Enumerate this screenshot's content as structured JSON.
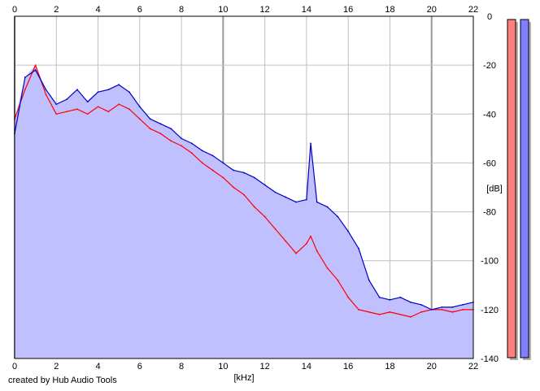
{
  "footer": {
    "credit": "created by Hub Audio Tools"
  },
  "colors": {
    "background": "#ffffff",
    "grid": "#c0c0c0",
    "major_grid": "#9a9a9a",
    "fill": "#c0c0ff",
    "left_channel": "#ff0000",
    "right_channel": "#0000c8",
    "meter_left": "#ff7f7f",
    "meter_right": "#7f7fff"
  },
  "chart_data": {
    "type": "line",
    "title": "",
    "xlabel": "[kHz]",
    "ylabel": "[dB]",
    "xlim": [
      0,
      22
    ],
    "ylim": [
      -140,
      0
    ],
    "x_ticks": [
      "0",
      "2",
      "4",
      "6",
      "8",
      "10",
      "12",
      "14",
      "16",
      "18",
      "20",
      "22"
    ],
    "y_ticks": [
      "0",
      "-20",
      "-40",
      "-60",
      "-80",
      "-100",
      "-120",
      "-140"
    ],
    "grid": true,
    "x": [
      0,
      0.5,
      1,
      1.5,
      2,
      2.5,
      3,
      3.5,
      4,
      4.5,
      5,
      5.5,
      6,
      6.5,
      7,
      7.5,
      8,
      8.5,
      9,
      9.5,
      10,
      10.5,
      11,
      11.5,
      12,
      12.5,
      13,
      13.5,
      14,
      14.2,
      14.5,
      15,
      15.5,
      16,
      16.5,
      17,
      17.5,
      18,
      18.5,
      19,
      19.5,
      20,
      20.5,
      21,
      21.5,
      22
    ],
    "series": [
      {
        "name": "",
        "color": "#ff0000",
        "values": [
          -42,
          -30,
          -20,
          -32,
          -40,
          -39,
          -38,
          -40,
          -37,
          -39,
          -36,
          -38,
          -42,
          -46,
          -48,
          -51,
          -53,
          -56,
          -60,
          -63,
          -66,
          -70,
          -73,
          -78,
          -82,
          -87,
          -92,
          -97,
          -93,
          -90,
          -96,
          -103,
          -108,
          -115,
          -120,
          -121,
          -122,
          -121,
          -122,
          -123,
          -121,
          -120,
          -120,
          -121,
          -120,
          -120
        ]
      },
      {
        "name": "",
        "color": "#0000c8",
        "values": [
          -48,
          -25,
          -22,
          -30,
          -36,
          -34,
          -30,
          -35,
          -31,
          -30,
          -28,
          -31,
          -37,
          -42,
          -44,
          -46,
          -50,
          -52,
          -55,
          -57,
          -60,
          -63,
          -64,
          -66,
          -69,
          -72,
          -74,
          -76,
          -75,
          -52,
          -76,
          -78,
          -82,
          -88,
          -95,
          -108,
          -115,
          -116,
          -115,
          -117,
          -118,
          -120,
          -119,
          -119,
          -118,
          -117
        ]
      }
    ],
    "meters": [
      {
        "name": "",
        "color": "#ff7f7f",
        "level_db": 0
      },
      {
        "name": "",
        "color": "#7f7fff",
        "level_db": 0
      }
    ]
  }
}
